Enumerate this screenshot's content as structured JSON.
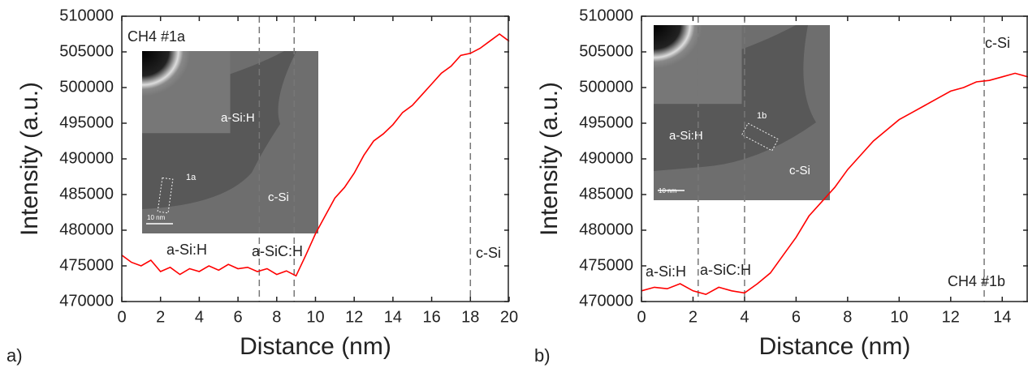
{
  "chart_data": [
    {
      "type": "line",
      "panel_label": "a)",
      "x_label": "Distance (nm)",
      "y_label": "Intensity (a.u.)",
      "color": "#ff0000",
      "x": [
        0,
        0.5,
        1,
        1.5,
        2,
        2.5,
        3,
        3.5,
        4,
        4.5,
        5,
        5.5,
        6,
        6.5,
        7,
        7.5,
        8,
        8.5,
        9,
        9.5,
        10,
        10.5,
        11,
        11.5,
        12,
        12.5,
        13,
        13.5,
        14,
        14.5,
        15,
        15.5,
        16,
        16.5,
        17,
        17.5,
        18,
        18.5,
        19,
        19.5,
        20
      ],
      "values": [
        476500,
        475500,
        475000,
        475800,
        474200,
        474800,
        473800,
        474600,
        474200,
        475000,
        474400,
        475200,
        474600,
        474800,
        474200,
        474600,
        473800,
        474300,
        473600,
        476500,
        479500,
        482000,
        484500,
        486000,
        488000,
        490500,
        492500,
        493500,
        494800,
        496500,
        497500,
        499000,
        500500,
        502000,
        503000,
        504500,
        504800,
        505500,
        506500,
        507500,
        506500
      ],
      "xlim": [
        0,
        20
      ],
      "xticks": [
        0,
        2,
        4,
        6,
        8,
        10,
        12,
        14,
        16,
        18,
        20
      ],
      "ylim": [
        470000,
        510000
      ],
      "yticks": [
        470000,
        475000,
        480000,
        485000,
        490000,
        495000,
        500000,
        505000,
        510000
      ],
      "vlines": [
        7.1,
        8.9,
        18
      ],
      "annotations": [
        "CH4 #1a",
        "a-Si:H",
        "a-SiC:H",
        "c-Si"
      ],
      "inset_labels": [
        "a-Si:H",
        "1a",
        "c-Si",
        "10 nm"
      ]
    },
    {
      "type": "line",
      "panel_label": "b)",
      "x_label": "Distance (nm)",
      "y_label": "Intensity (a.u.)",
      "color": "#ff0000",
      "x": [
        0,
        0.5,
        1,
        1.5,
        2,
        2.5,
        3,
        3.5,
        4,
        4.5,
        5,
        5.5,
        6,
        6.5,
        7,
        7.5,
        8,
        8.5,
        9,
        9.5,
        10,
        10.5,
        11,
        11.5,
        12,
        12.5,
        13,
        13.5,
        14,
        14.5,
        15
      ],
      "values": [
        471500,
        472000,
        471800,
        472500,
        471500,
        471000,
        472000,
        471500,
        471200,
        472500,
        474000,
        476500,
        479000,
        482000,
        484000,
        486000,
        488500,
        490500,
        492500,
        494000,
        495500,
        496500,
        497500,
        498500,
        499500,
        500000,
        500800,
        501000,
        501500,
        502000,
        501500
      ],
      "xlim": [
        0,
        15
      ],
      "xticks": [
        0,
        2,
        4,
        6,
        8,
        10,
        12,
        14
      ],
      "ylim": [
        470000,
        510000
      ],
      "yticks": [
        470000,
        475000,
        480000,
        485000,
        490000,
        495000,
        500000,
        505000,
        510000
      ],
      "vlines": [
        2.2,
        4,
        13.3
      ],
      "annotations": [
        "c-Si",
        "a-Si:H",
        "a-SiC:H",
        "CH4 #1b"
      ],
      "inset_labels": [
        "1b",
        "a-Si:H",
        "c-Si",
        "10 nm"
      ]
    }
  ]
}
